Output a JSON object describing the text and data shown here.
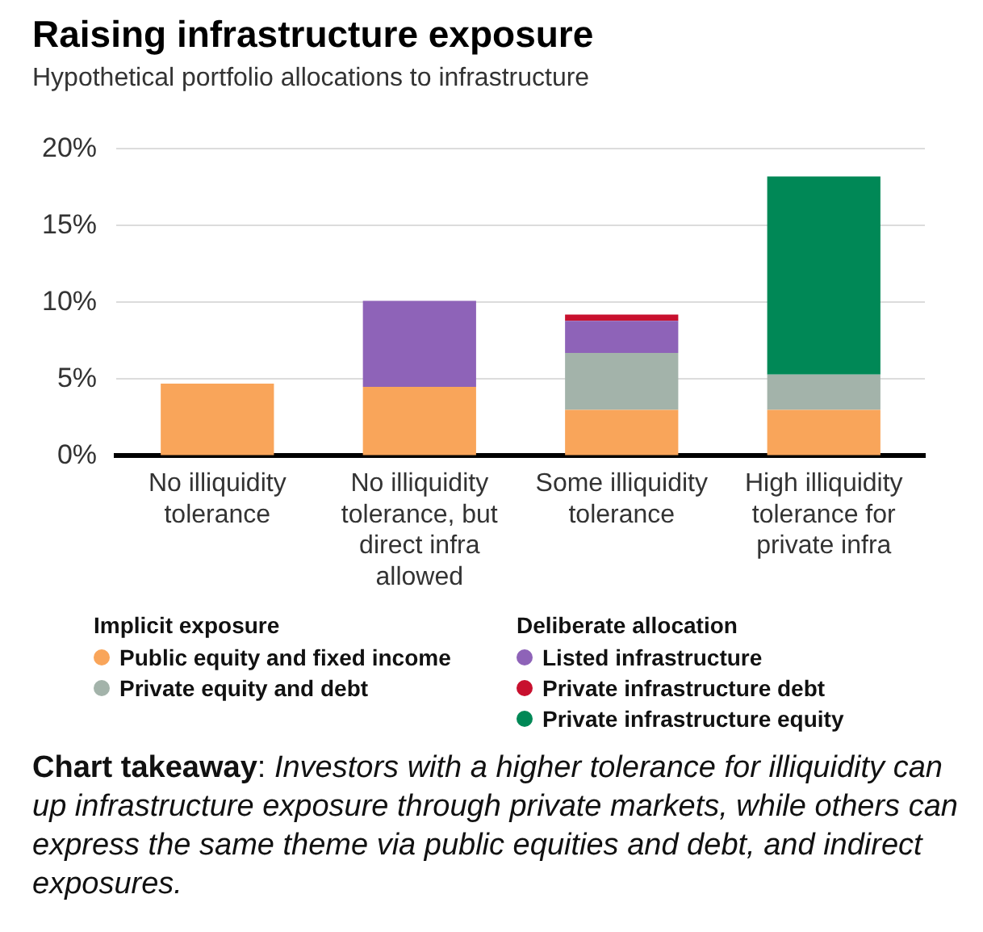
{
  "chart_data": {
    "type": "bar",
    "title": "Raising infrastructure exposure",
    "subtitle": "Hypothetical portfolio allocations to infrastructure",
    "categories": [
      "No illiquidity tolerance",
      "No illiquidity tolerance, but direct infra allowed",
      "Some illiquidity tolerance",
      "High illiquidity tolerance for private infra"
    ],
    "series": [
      {
        "name": "Public equity and fixed income",
        "color": "#f9a55a",
        "values": [
          4.7,
          4.5,
          3.0,
          3.0
        ]
      },
      {
        "name": "Private equity and debt",
        "color": "#a3b3aa",
        "values": [
          null,
          null,
          3.7,
          2.3
        ]
      },
      {
        "name": "Listed infrastructure",
        "color": "#8e63b8",
        "values": [
          null,
          5.6,
          2.1,
          null
        ]
      },
      {
        "name": "Private infrastructure debt",
        "color": "#c8102e",
        "values": [
          null,
          null,
          0.4,
          null
        ]
      },
      {
        "name": "Private infrastructure equity",
        "color": "#008856",
        "values": [
          null,
          null,
          null,
          12.9
        ]
      }
    ],
    "stacked": true,
    "ylim": [
      0,
      20
    ],
    "yticks": [
      {
        "value": 0,
        "label": "0%"
      },
      {
        "value": 5,
        "label": "5%"
      },
      {
        "value": 10,
        "label": "10%"
      },
      {
        "value": 15,
        "label": "15%"
      },
      {
        "value": 20,
        "label": "20%"
      }
    ],
    "grid": "y",
    "legend": "bottom",
    "annotations": [
      "Implicit exposure",
      "Deliberate allocation",
      "Chart takeaway: Investors with a higher tolerance for illiquidity can up infrastructure exposure through private markets, while others can express the same theme via public equities and debt, and indirect exposures."
    ]
  }
}
